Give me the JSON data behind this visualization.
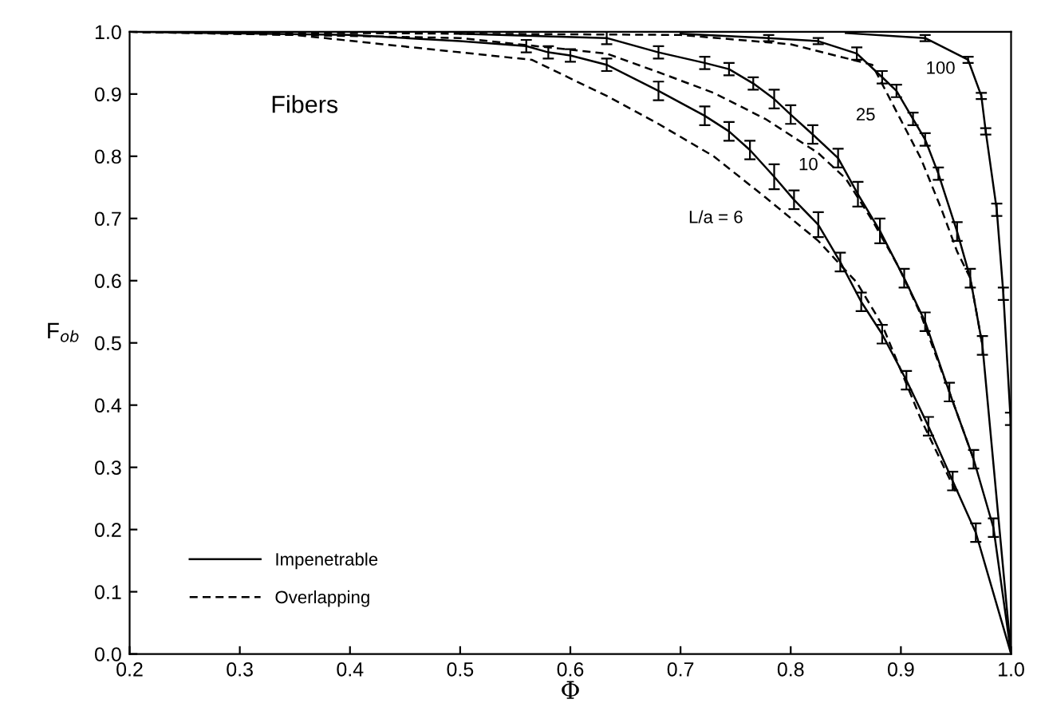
{
  "chart_data": {
    "type": "line",
    "xlabel": "Φ",
    "ylabel": "F$_{ob}$",
    "xlim": [
      0.2,
      1.0
    ],
    "ylim": [
      0.0,
      1.0
    ],
    "xticks": [
      0.2,
      0.3,
      0.4,
      0.5,
      0.6,
      0.7,
      0.8,
      0.9,
      {
        "value": 1.0,
        "label": "1.0"
      }
    ],
    "yticks": [
      {
        "value": 0.0,
        "label": "0.0"
      },
      0.1,
      0.2,
      0.3,
      0.4,
      0.5,
      0.6,
      0.7,
      0.8,
      0.9,
      {
        "value": 1.0,
        "label": "1.0"
      }
    ],
    "grid": false,
    "legend": "bottom left",
    "marker": "none",
    "series": [
      {
        "name": "Impenetrable",
        "color": "#000000",
        "line_style": "solid",
        "x": [
          0.2,
          0.4,
          0.5,
          0.56,
          0.58,
          0.6,
          0.633,
          0.68,
          0.722,
          0.744,
          0.763,
          0.785,
          0.803,
          0.825,
          0.845,
          0.864,
          0.883,
          0.905,
          0.925,
          0.947,
          0.968,
          1.0
        ],
        "values": [
          1.0,
          0.995,
          0.985,
          0.977,
          0.967,
          0.962,
          0.947,
          0.905,
          0.865,
          0.84,
          0.81,
          0.767,
          0.73,
          0.69,
          0.63,
          0.566,
          0.514,
          0.44,
          0.366,
          0.278,
          0.195,
          0.0
        ],
        "errors": [
          null,
          null,
          null,
          0.01,
          0.01,
          0.01,
          0.01,
          0.015,
          0.015,
          0.015,
          0.015,
          0.02,
          0.015,
          0.02,
          0.015,
          0.015,
          0.015,
          0.015,
          0.015,
          0.015,
          0.015,
          null
        ]
      },
      {
        "color": "#000000",
        "line_style": "solid",
        "x": [
          0.5,
          0.633,
          0.68,
          0.722,
          0.744,
          0.766,
          0.785,
          0.8,
          0.82,
          0.843,
          0.861,
          0.881,
          0.903,
          0.922,
          0.944,
          0.966,
          0.984,
          1.0
        ],
        "values": [
          0.997,
          0.99,
          0.967,
          0.95,
          0.94,
          0.917,
          0.892,
          0.867,
          0.835,
          0.797,
          0.739,
          0.68,
          0.604,
          0.534,
          0.421,
          0.313,
          0.203,
          0.0
        ],
        "errors": [
          null,
          0.01,
          0.01,
          0.01,
          0.01,
          0.01,
          0.015,
          0.015,
          0.015,
          0.015,
          0.02,
          0.02,
          0.015,
          0.015,
          0.015,
          0.015,
          0.015,
          null
        ]
      },
      {
        "color": "#000000",
        "line_style": "solid",
        "x": [
          0.7,
          0.78,
          0.825,
          0.86,
          0.883,
          0.896,
          0.911,
          0.922,
          0.934,
          0.951,
          0.963,
          0.974,
          1.0
        ],
        "values": [
          0.997,
          0.99,
          0.985,
          0.965,
          0.927,
          0.905,
          0.86,
          0.827,
          0.772,
          0.679,
          0.604,
          0.496,
          0.0
        ],
        "errors": [
          null,
          0.005,
          0.005,
          0.01,
          0.01,
          0.01,
          0.01,
          0.01,
          0.01,
          0.015,
          0.015,
          0.015,
          null
        ]
      },
      {
        "color": "#000000",
        "line_style": "solid",
        "x": [
          0.85,
          0.922,
          0.961,
          0.973,
          0.977,
          0.987,
          0.993,
          0.9995,
          1.0
        ],
        "values": [
          0.998,
          0.99,
          0.955,
          0.897,
          0.84,
          0.714,
          0.579,
          0.378,
          0.0
        ],
        "errors": [
          null,
          0.005,
          0.005,
          0.005,
          0.005,
          0.01,
          0.01,
          0.01,
          null
        ]
      },
      {
        "name": "Overlapping",
        "color": "#000000",
        "line_style": "dashed",
        "x": [
          0.2,
          0.35,
          0.43,
          0.5,
          0.565,
          0.633,
          0.68,
          0.73,
          0.777,
          0.825,
          0.86,
          0.883,
          0.918,
          0.95
        ],
        "values": [
          1.0,
          0.995,
          0.98,
          0.967,
          0.955,
          0.897,
          0.852,
          0.8,
          0.734,
          0.664,
          0.597,
          0.529,
          0.378,
          0.26
        ]
      },
      {
        "color": "#000000",
        "line_style": "dashed",
        "x": [
          0.2,
          0.5,
          0.633,
          0.68,
          0.73,
          0.777,
          0.825,
          0.85,
          0.874,
          0.898,
          0.918,
          0.944,
          0.966
        ],
        "values": [
          1.0,
          0.99,
          0.965,
          0.935,
          0.902,
          0.86,
          0.805,
          0.764,
          0.697,
          0.622,
          0.546,
          0.421,
          0.313
        ]
      },
      {
        "color": "#000000",
        "line_style": "dashed",
        "x": [
          0.2,
          0.7,
          0.8,
          0.874,
          0.898,
          0.918,
          0.937,
          0.951,
          0.963,
          0.974
        ],
        "values": [
          1.0,
          0.995,
          0.98,
          0.947,
          0.865,
          0.797,
          0.714,
          0.647,
          0.604,
          0.496
        ]
      }
    ],
    "annotations": [
      "Fibers",
      "L/a = 6",
      "10",
      "25",
      "100"
    ]
  }
}
